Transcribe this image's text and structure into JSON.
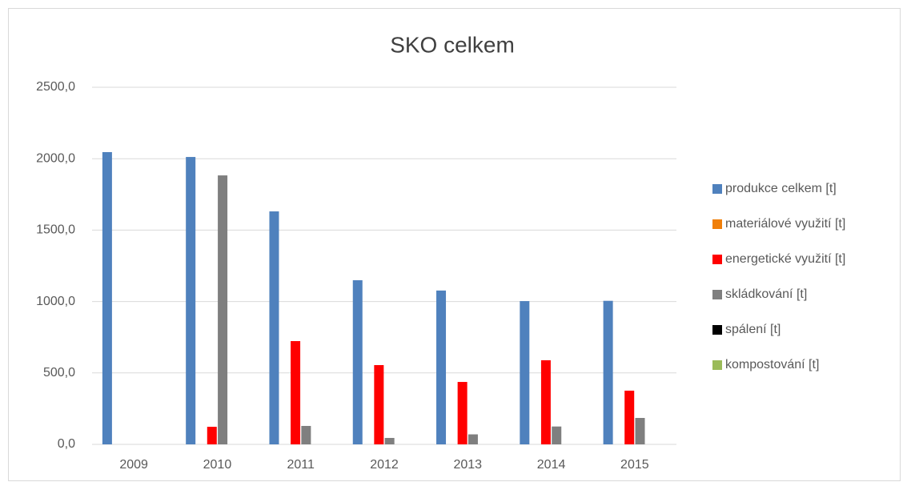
{
  "chart_data": {
    "type": "bar",
    "title": "SKO celkem",
    "categories": [
      "2009",
      "2010",
      "2011",
      "2012",
      "2013",
      "2014",
      "2015"
    ],
    "series": [
      {
        "name": "produkce celkem [t]",
        "color": "#4f81bd",
        "values": [
          2046,
          2012,
          1631,
          1149,
          1077,
          1003,
          1005
        ]
      },
      {
        "name": "materiálové využití [t]",
        "color": "#f07f09",
        "values": [
          0,
          0,
          0,
          0,
          0,
          0,
          0
        ]
      },
      {
        "name": "energetické využití [t]",
        "color": "#ff0000",
        "values": [
          0,
          123,
          723,
          555,
          437,
          589,
          376
        ]
      },
      {
        "name": "skládkování [t]",
        "color": "#7f7f7f",
        "values": [
          0,
          1883,
          129,
          45,
          70,
          125,
          185
        ]
      },
      {
        "name": "spálení [t]",
        "color": "#000000",
        "values": [
          0,
          0,
          0,
          0,
          0,
          0,
          0
        ]
      },
      {
        "name": "kompostování [t]",
        "color": "#9bbb59",
        "values": [
          0,
          0,
          0,
          0,
          0,
          0,
          0
        ]
      }
    ],
    "ylim": [
      0,
      2500
    ],
    "yticks": [
      {
        "value": 0,
        "label": "0,0"
      },
      {
        "value": 500,
        "label": "500,0"
      },
      {
        "value": 1000,
        "label": "1000,0"
      },
      {
        "value": 1500,
        "label": "1500,0"
      },
      {
        "value": 2000,
        "label": "2000,0"
      },
      {
        "value": 2500,
        "label": "2500,0"
      }
    ],
    "grid": true,
    "legend": "right"
  }
}
